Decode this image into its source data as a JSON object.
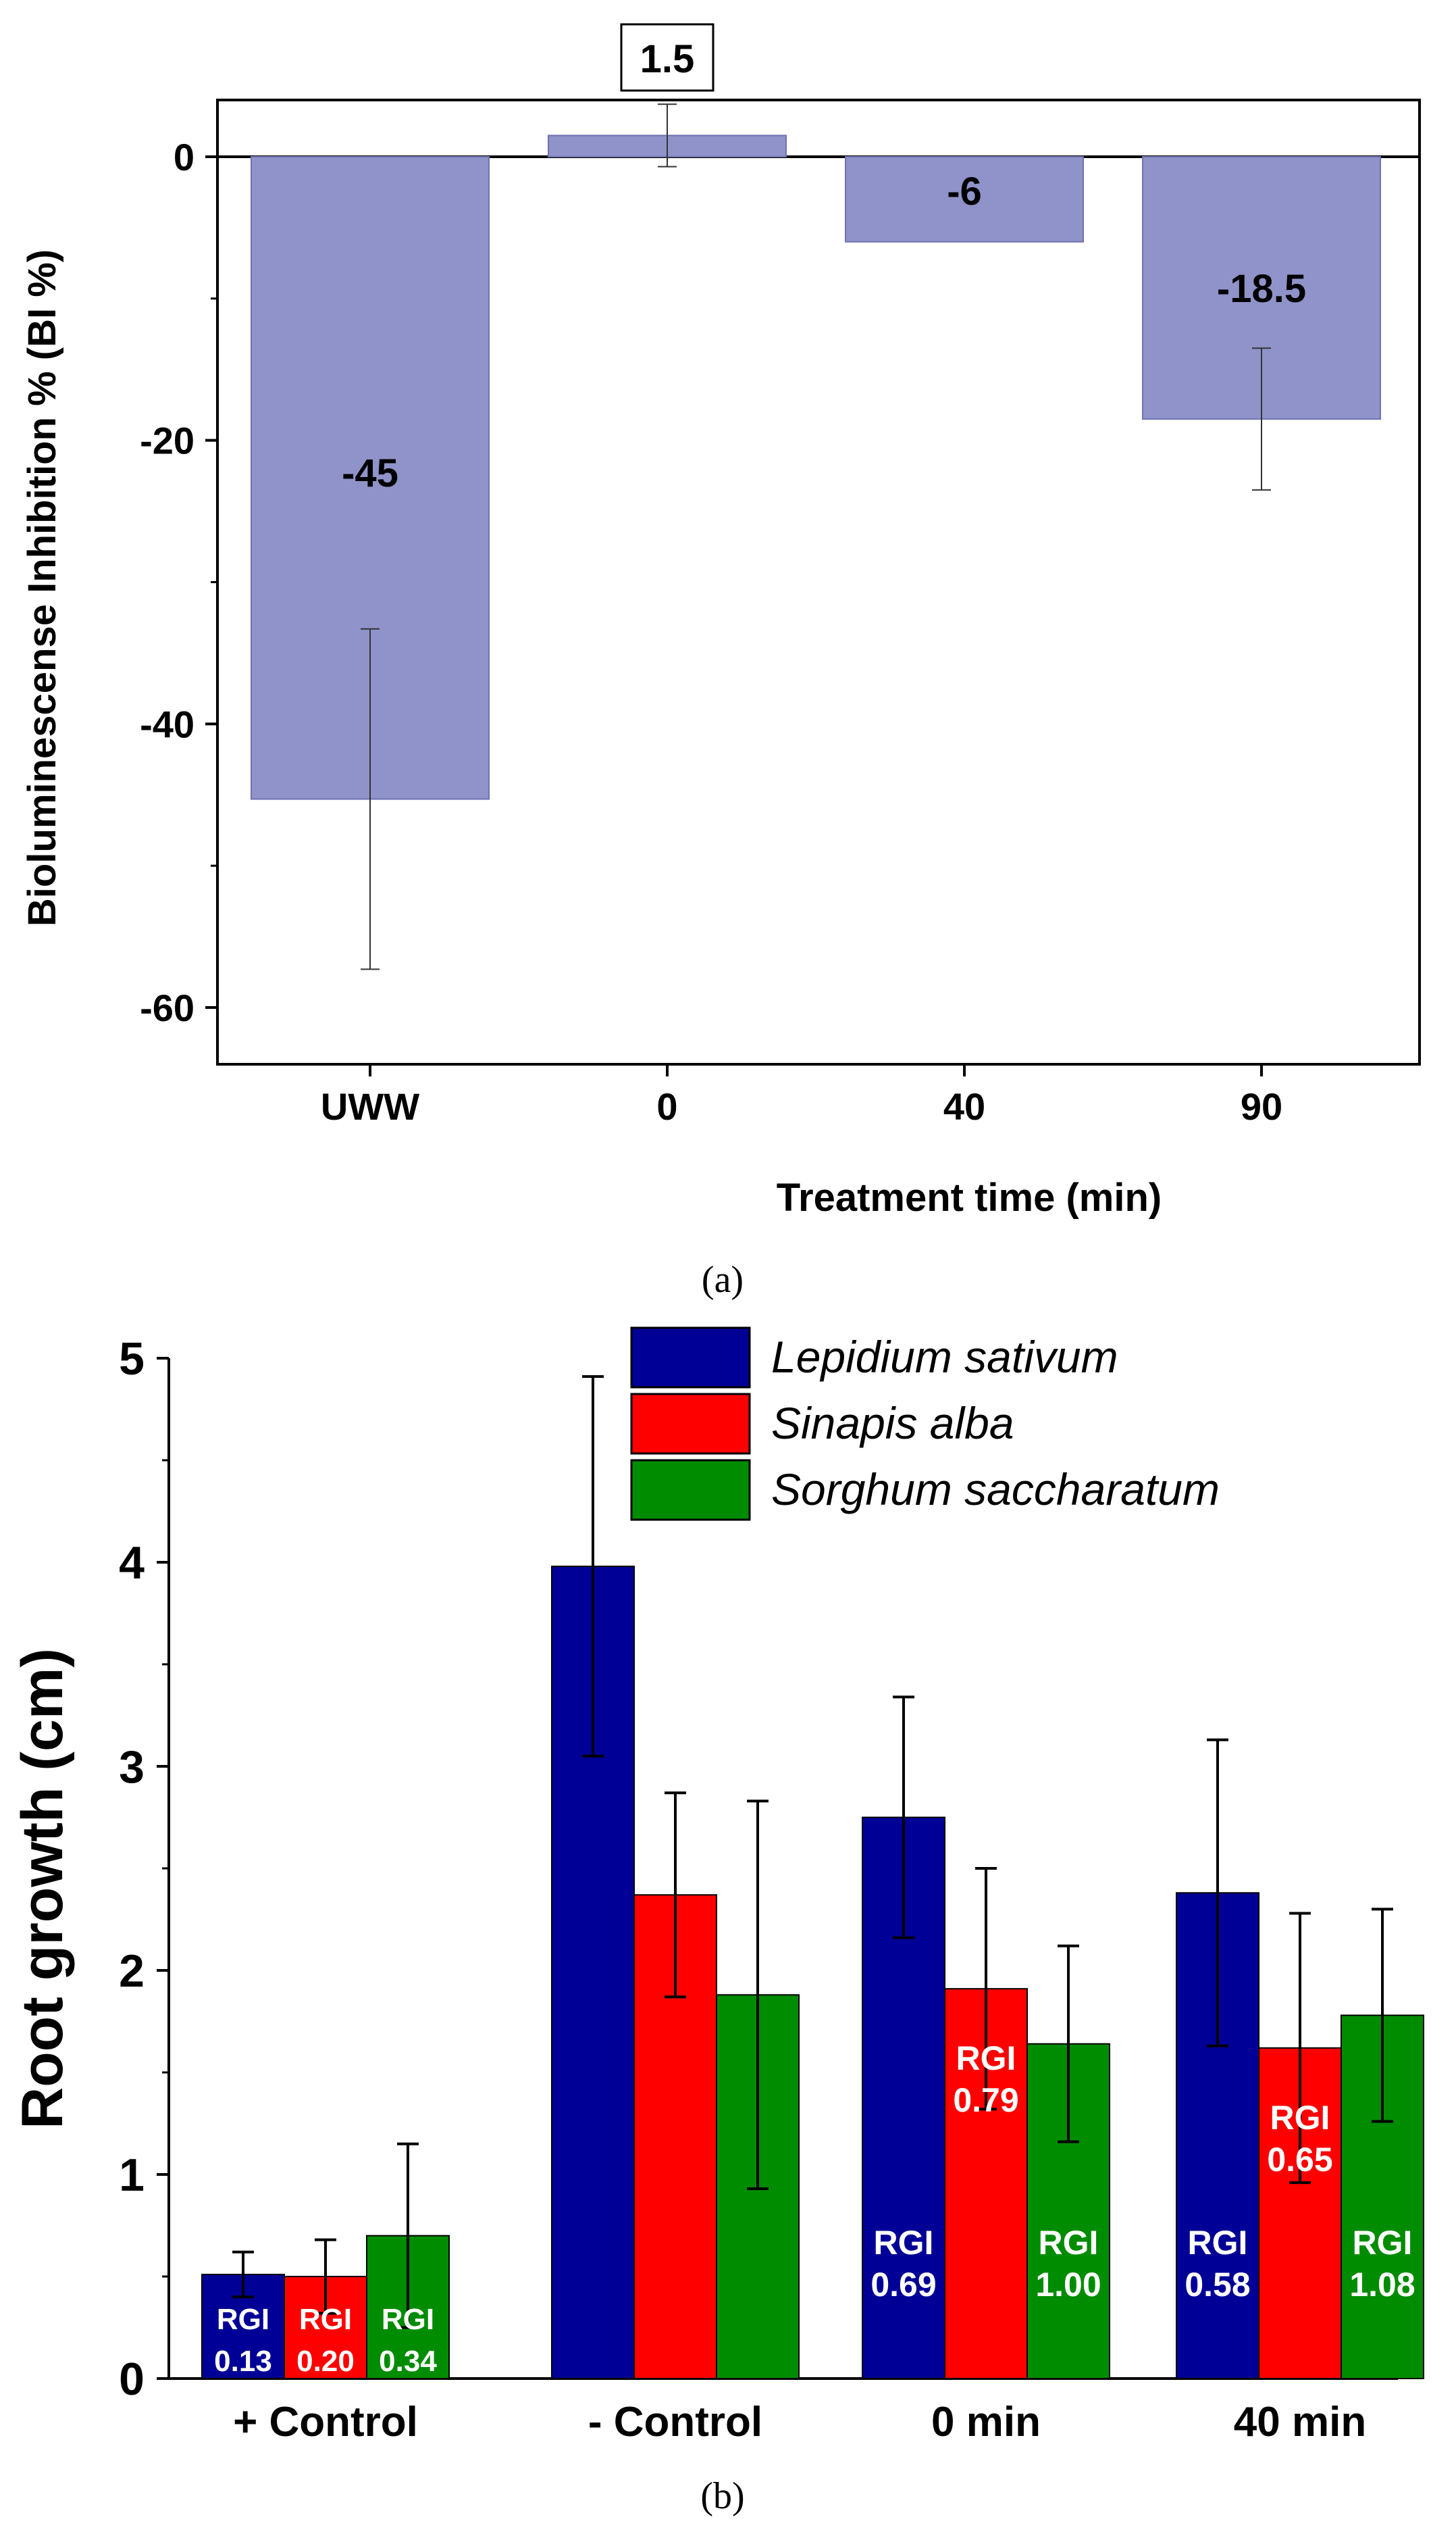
{
  "chart_data": [
    {
      "type": "bar",
      "panel_label": "(a)",
      "title": "",
      "xlabel": "Treatment time (min)",
      "ylabel": "Bioluminescense Inhibition % (BI %)",
      "categories": [
        "UWW",
        "0",
        "40",
        "90"
      ],
      "values": [
        -45.3,
        1.5,
        -6,
        -18.5
      ],
      "error": [
        12,
        2.2,
        0,
        5
      ],
      "data_labels": [
        "-45",
        "1.5",
        "-6",
        "-18.5"
      ],
      "ylim": [
        -64,
        4
      ],
      "yticks": [
        0,
        -20,
        -40,
        -60
      ],
      "bar_color": "#8f93c9",
      "boxed_label_index": 1,
      "grid": false
    },
    {
      "type": "bar",
      "panel_label": "(b)",
      "title": "",
      "xlabel": "",
      "ylabel": "Root growth (cm)",
      "categories": [
        "+ Control",
        "- Control",
        "0 min",
        "40 min"
      ],
      "ylim": [
        0,
        5
      ],
      "yticks": [
        0,
        1,
        2,
        3,
        4,
        5
      ],
      "legend_position": "top-right",
      "grid": false,
      "series": [
        {
          "name": "Lepidium sativum",
          "color": "#000096",
          "values": [
            0.51,
            3.98,
            2.75,
            2.38
          ],
          "error": [
            0.11,
            0.93,
            0.59,
            0.75
          ],
          "rgi_labels": [
            [
              "RGI",
              "0.13"
            ],
            [],
            [
              "RGI",
              "0.69"
            ],
            [
              "RGI",
              "0.58"
            ]
          ]
        },
        {
          "name": "Sinapis alba",
          "color": "#ff0000",
          "values": [
            0.5,
            2.37,
            1.91,
            1.62
          ],
          "error": [
            0.18,
            0.5,
            0.59,
            0.66
          ],
          "rgi_labels": [
            [
              "RGI",
              "0.20"
            ],
            [],
            [
              "RGI",
              "0.79"
            ],
            [
              "RGI",
              "0.65"
            ]
          ]
        },
        {
          "name": "Sorghum saccharatum",
          "color": "#008c00",
          "values": [
            0.7,
            1.88,
            1.64,
            1.78
          ],
          "error": [
            0.45,
            0.95,
            0.48,
            0.52
          ],
          "rgi_labels": [
            [
              "RGI",
              "0.34"
            ],
            [],
            [
              "RGI",
              "1.00"
            ],
            [
              "RGI",
              "1.08"
            ]
          ]
        }
      ]
    }
  ]
}
